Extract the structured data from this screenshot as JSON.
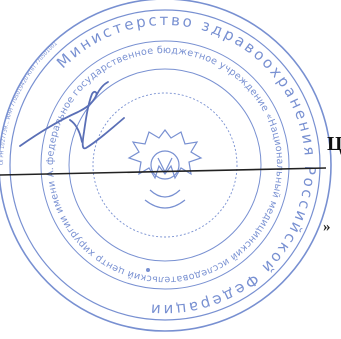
{
  "stamp": {
    "name": "official-round-seal",
    "color": "#5b78c8",
    "outer_ring_text": "Министерство здравоохранения Российской Федерации",
    "inner_ring_text": "федеральное государственное бюджетное учреждение «Национальный медицинский исследовательский центр хирургии имени А.В. Вишневского» Министерства здравоохранения Российской Федерации",
    "rim_micro_text": "ОГРН 1027739...  ИНН 7705019420  КПП 770501001",
    "center_emblem": "double-headed-eagle-emblem"
  },
  "signature": {
    "name": "handwritten-signature",
    "color": "#5a6fb6"
  },
  "document": {
    "visible_letter": "Ц",
    "visible_mark": "»",
    "rule_color": "#222222"
  }
}
